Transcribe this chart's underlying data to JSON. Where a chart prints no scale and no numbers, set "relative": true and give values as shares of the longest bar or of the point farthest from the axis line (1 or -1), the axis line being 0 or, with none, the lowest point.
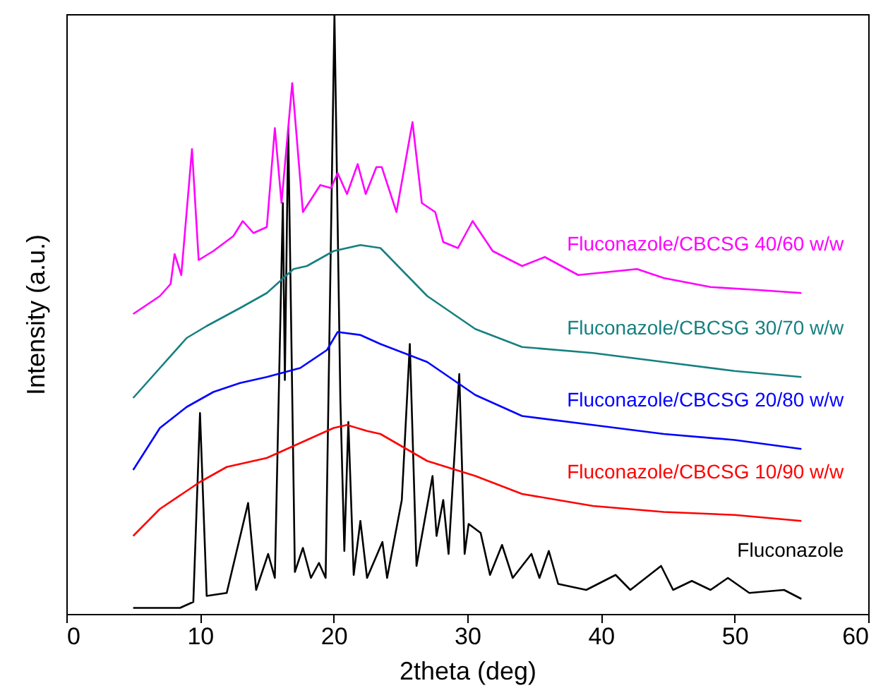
{
  "chart_data": {
    "type": "line",
    "xlabel": "2theta (deg)",
    "ylabel": "Intensity (a.u.)",
    "relative": true,
    "tick_labels": "x",
    "line_style": "solid",
    "xlim": [
      0,
      60
    ],
    "xticks": [
      0,
      10,
      20,
      30,
      40,
      50,
      60
    ],
    "series": [
      {
        "name": "Fluconazole",
        "color": "#000000",
        "x": [
          5,
          8.5,
          9.5,
          10,
          10.5,
          12,
          13.6,
          14.2,
          15.1,
          15.6,
          16.2,
          16.35,
          16.6,
          17.1,
          17.7,
          18.3,
          18.9,
          19.4,
          20.06,
          20.5,
          20.8,
          21.1,
          21.5,
          22.0,
          22.5,
          23.65,
          24,
          25.1,
          25.7,
          26.2,
          27.4,
          27.7,
          28.2,
          28.6,
          29.4,
          29.8,
          30.1,
          31.0,
          31.7,
          32.6,
          33.4,
          34.8,
          35.4,
          36.1,
          36.8,
          38.9,
          41.1,
          42.2,
          44.5,
          45.4,
          46.8,
          48.2,
          49.5,
          51.1,
          53.7,
          55
        ],
        "values": [
          0.01,
          0.01,
          0.02,
          0.335,
          0.03,
          0.035,
          0.185,
          0.04,
          0.1,
          0.06,
          0.685,
          0.39,
          0.81,
          0.07,
          0.11,
          0.06,
          0.085,
          0.06,
          1.0,
          0.36,
          0.105,
          0.32,
          0.065,
          0.155,
          0.06,
          0.12,
          0.06,
          0.19,
          0.45,
          0.08,
          0.23,
          0.13,
          0.19,
          0.1,
          0.4,
          0.1,
          0.15,
          0.135,
          0.065,
          0.115,
          0.06,
          0.1,
          0.06,
          0.105,
          0.05,
          0.04,
          0.065,
          0.04,
          0.08,
          0.04,
          0.055,
          0.04,
          0.06,
          0.035,
          0.04,
          0.025
        ]
      },
      {
        "name": "Fluconazole/CBCSG 10/90 w/w",
        "color": "#ff0000",
        "x": [
          5,
          7,
          9,
          10,
          12,
          15,
          17.5,
          20,
          21,
          22.5,
          23.5,
          27,
          30.6,
          34.1,
          39.4,
          44.7,
          50,
          55
        ],
        "values": [
          0.13,
          0.175,
          0.205,
          0.22,
          0.245,
          0.26,
          0.285,
          0.31,
          0.315,
          0.305,
          0.3,
          0.255,
          0.23,
          0.2,
          0.18,
          0.17,
          0.165,
          0.155
        ]
      },
      {
        "name": "Fluconazole/CBCSG 20/80 w/w",
        "color": "#0000ff",
        "x": [
          5,
          7,
          9,
          11,
          13,
          15,
          17.5,
          19.5,
          20.3,
          22,
          23.5,
          27,
          30.6,
          34.1,
          39.4,
          44.7,
          50,
          55
        ],
        "values": [
          0.24,
          0.31,
          0.345,
          0.37,
          0.385,
          0.395,
          0.41,
          0.44,
          0.47,
          0.465,
          0.45,
          0.42,
          0.365,
          0.33,
          0.315,
          0.3,
          0.29,
          0.275
        ]
      },
      {
        "name": "Fluconazole/CBCSG 30/70 w/w",
        "color": "#168080",
        "x": [
          5,
          7,
          9,
          10.5,
          13,
          15,
          17,
          18,
          20,
          22,
          23.5,
          27,
          30.6,
          34.1,
          39.4,
          44.7,
          50,
          55
        ],
        "values": [
          0.36,
          0.41,
          0.46,
          0.48,
          0.51,
          0.535,
          0.575,
          0.58,
          0.605,
          0.615,
          0.61,
          0.53,
          0.475,
          0.445,
          0.435,
          0.42,
          0.405,
          0.395
        ]
      },
      {
        "name": "Fluconazole/CBCSG 40/60 w/w",
        "color": "#ff00ff",
        "x": [
          5,
          7,
          7.8,
          8.1,
          8.6,
          9.4,
          9.9,
          11,
          12.5,
          13.2,
          14,
          15,
          15.6,
          16.1,
          16.9,
          17.7,
          19,
          19.8,
          20.3,
          21,
          21.8,
          22.4,
          23.2,
          23.6,
          24.7,
          25.9,
          26.6,
          27.6,
          28.2,
          29.3,
          30.4,
          31.9,
          34.1,
          35.8,
          38.3,
          42.7,
          44.7,
          48.2,
          51.8,
          55
        ],
        "values": [
          0.5,
          0.53,
          0.55,
          0.6,
          0.565,
          0.775,
          0.59,
          0.605,
          0.63,
          0.655,
          0.635,
          0.645,
          0.81,
          0.685,
          0.885,
          0.67,
          0.715,
          0.71,
          0.735,
          0.7,
          0.75,
          0.7,
          0.745,
          0.745,
          0.67,
          0.82,
          0.685,
          0.67,
          0.62,
          0.61,
          0.655,
          0.605,
          0.58,
          0.595,
          0.565,
          0.575,
          0.56,
          0.545,
          0.54,
          0.535
        ]
      }
    ]
  }
}
